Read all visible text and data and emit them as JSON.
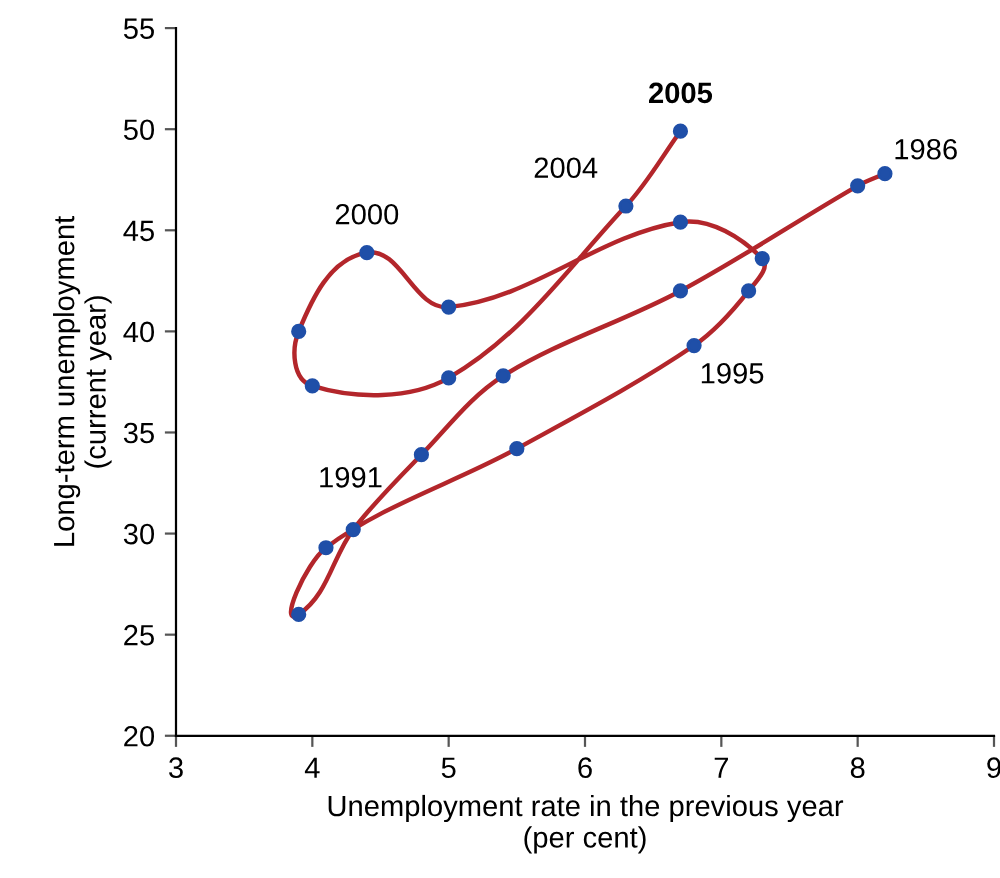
{
  "chart_data": {
    "type": "line",
    "xlabel": "Unemployment rate in the previous year\n(per cent)",
    "ylabel": "Long-term unemployment\n(current year)",
    "series": [
      {
        "color": "#b3262b",
        "x": [
          8.2,
          8.0,
          6.7,
          5.4,
          4.8,
          4.3,
          3.9,
          4.1,
          5.5,
          6.8,
          7.2,
          7.3,
          6.7,
          5.0,
          4.4,
          3.9,
          4.0,
          5.0,
          6.3,
          6.7
        ],
        "values": [
          47.8,
          47.2,
          42.0,
          37.8,
          33.9,
          30.2,
          26.0,
          29.3,
          34.2,
          39.3,
          42.0,
          43.6,
          45.4,
          41.2,
          43.9,
          40.0,
          37.3,
          37.7,
          46.2,
          49.9
        ],
        "colors": [
          "#1f4fa8",
          "#1f4fa8",
          "#1f4fa8",
          "#1f4fa8",
          "#1f4fa8",
          "#1f4fa8",
          "#1f4fa8",
          "#1f4fa8",
          "#1f4fa8",
          "#1f4fa8",
          "#1f4fa8",
          "#1f4fa8",
          "#1f4fa8",
          "#1f4fa8",
          "#1f4fa8",
          "#1f4fa8",
          "#1f4fa8",
          "#1f4fa8",
          "#1f4fa8",
          "#1f4fa8"
        ]
      }
    ],
    "marker": "circle",
    "line_style": "solid",
    "grid": false,
    "legend": false,
    "xlim": [
      3,
      9
    ],
    "xticks": [
      3,
      4,
      5,
      6,
      7,
      8,
      9
    ],
    "ylim": [
      20,
      55
    ],
    "yticks": [
      20,
      25,
      30,
      35,
      40,
      45,
      50,
      55
    ],
    "annotations": [
      {
        "text": "1986",
        "x": 8.2,
        "y": 47.8
      },
      {
        "text": "1991",
        "x": 4.3,
        "y": 30.2
      },
      {
        "text": "1995",
        "x": 6.8,
        "y": 39.3
      },
      {
        "text": "2000",
        "x": 4.4,
        "y": 43.9
      },
      {
        "text": "2004",
        "x": 6.3,
        "y": 46.2
      },
      {
        "text": "2005",
        "x": 6.7,
        "y": 49.9
      }
    ]
  }
}
